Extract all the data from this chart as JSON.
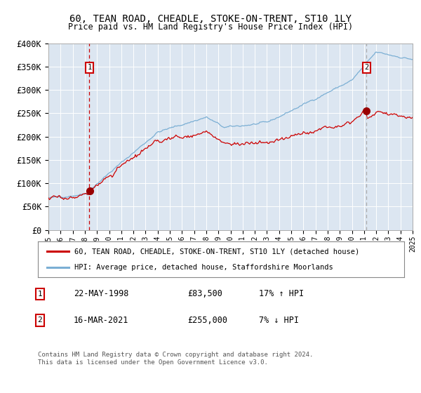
{
  "title": "60, TEAN ROAD, CHEADLE, STOKE-ON-TRENT, ST10 1LY",
  "subtitle": "Price paid vs. HM Land Registry's House Price Index (HPI)",
  "background_color": "#dce6f1",
  "plot_bg_color": "#dce6f1",
  "hpi_line_color": "#7bafd4",
  "price_line_color": "#cc0000",
  "sale1_vline_color": "#cc0000",
  "sale1_vline_style": "--",
  "sale2_vline_color": "#aaaaaa",
  "sale2_vline_style": "--",
  "ylim": [
    0,
    400000
  ],
  "yticks": [
    0,
    50000,
    100000,
    150000,
    200000,
    250000,
    300000,
    350000,
    400000
  ],
  "ytick_labels": [
    "£0",
    "£50K",
    "£100K",
    "£150K",
    "£200K",
    "£250K",
    "£300K",
    "£350K",
    "£400K"
  ],
  "year_start": 1995,
  "year_end": 2025,
  "sale1_date": 1998.38,
  "sale1_price": 83500,
  "sale1_label": "1",
  "sale1_hpi_pct": "17% ↑ HPI",
  "sale1_date_str": "22-MAY-1998",
  "sale2_date": 2021.2,
  "sale2_price": 255000,
  "sale2_label": "2",
  "sale2_hpi_pct": "7% ↓ HPI",
  "sale2_date_str": "16-MAR-2021",
  "legend_line1": "60, TEAN ROAD, CHEADLE, STOKE-ON-TRENT, ST10 1LY (detached house)",
  "legend_line2": "HPI: Average price, detached house, Staffordshire Moorlands",
  "footnote": "Contains HM Land Registry data © Crown copyright and database right 2024.\nThis data is licensed under the Open Government Licence v3.0."
}
